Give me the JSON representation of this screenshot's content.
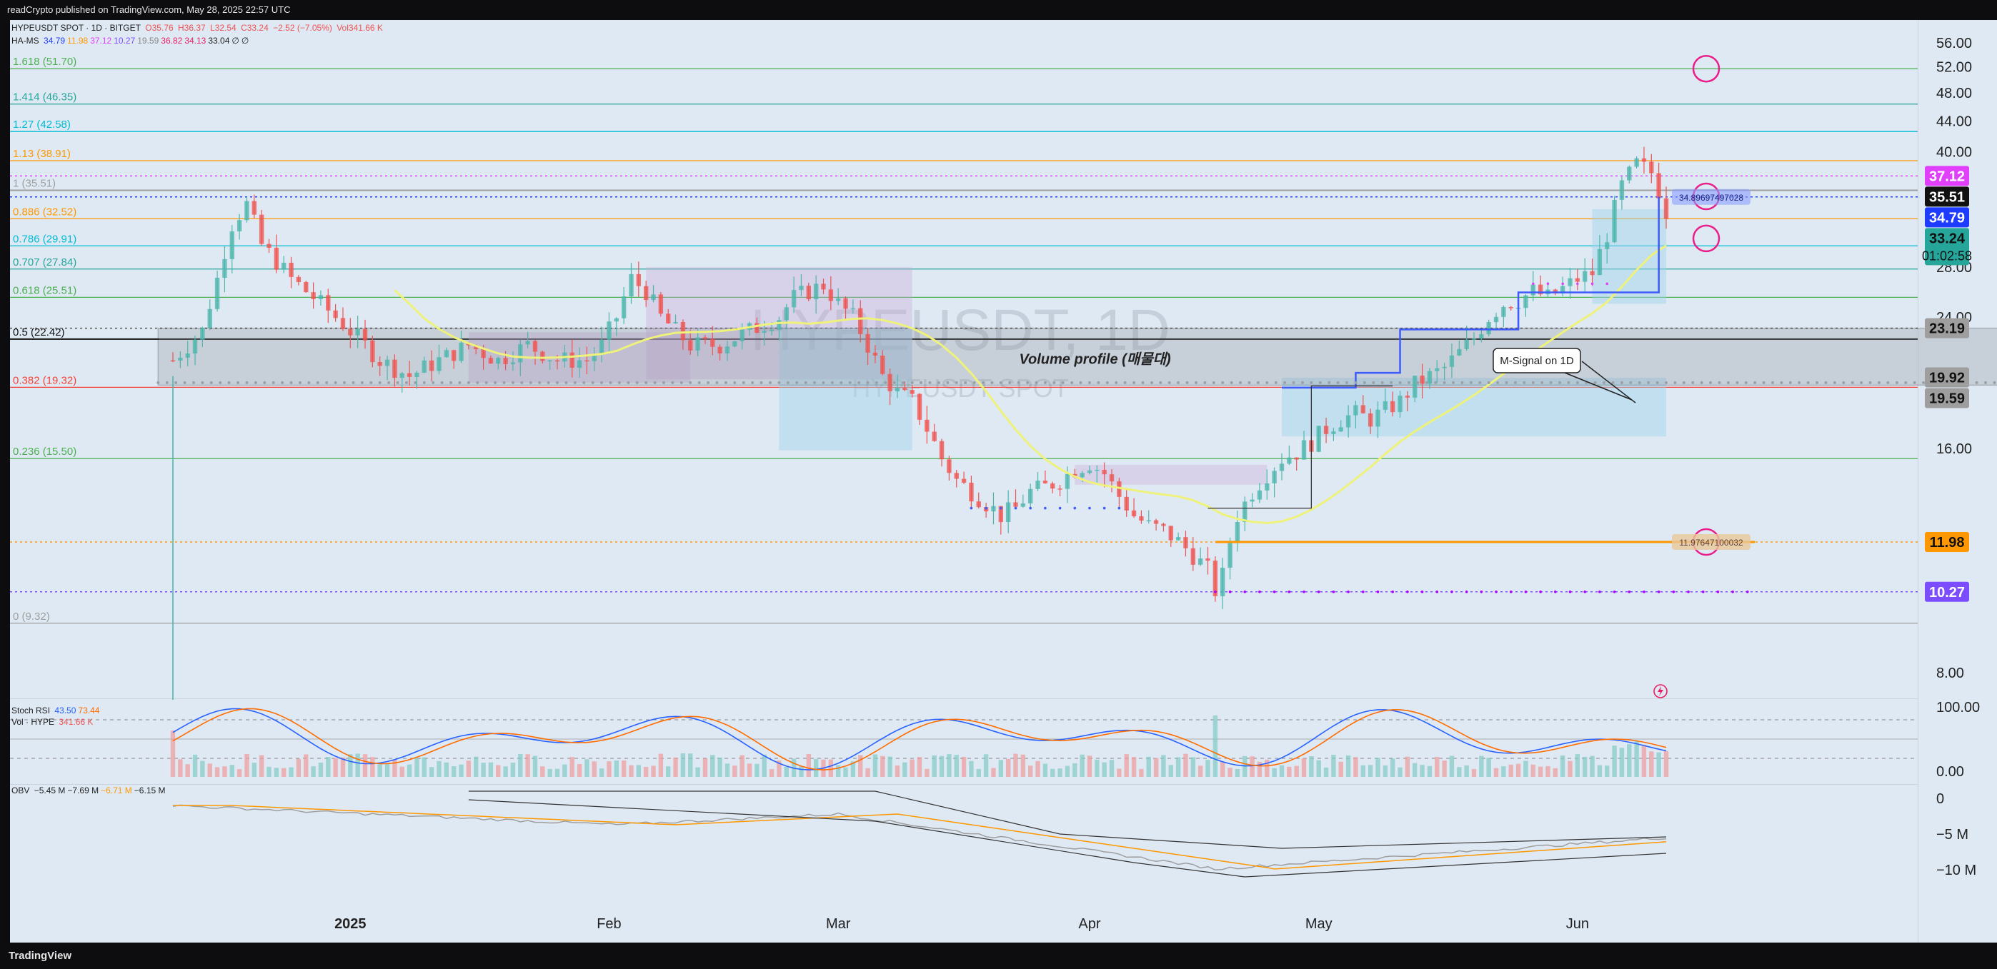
{
  "header": {
    "published": "readCrypto published on TradingView.com, May 28, 2025 22:57 UTC"
  },
  "footer": {
    "logo": "TradingView"
  },
  "legend": {
    "symbol": "HYPEUSDT SPOT · 1D · BITGET",
    "ohlc_o": "O35.76",
    "ohlc_h": "H36.37",
    "ohlc_l": "L32.54",
    "ohlc_c": "C33.24",
    "ohlc_chg": "−2.52 (−7.05%)",
    "vol": "Vol341.66 K",
    "ha_ms_name": "HA-MS",
    "ha_ms_values": [
      "34.79",
      "11.98",
      "37.12",
      "10.27",
      "19.59",
      "36.82",
      "34.13",
      "33.04",
      "∅",
      "∅"
    ],
    "ha_ms_colors": [
      "#1e3cff",
      "#ff9800",
      "#e040fb",
      "#7c4dff",
      "#888888",
      "#e91e63",
      "#e91e63",
      "#222222",
      "#222222",
      "#222222"
    ]
  },
  "watermark": {
    "symbol": "HYPEUSDT, 1D",
    "sub": "HYPEUSDT SPOT"
  },
  "annotations": {
    "volume_profile": "Volume profile (매물대)",
    "m_signal": "M-Signal on 1D",
    "tag_upper": "34.89697497028",
    "tag_lower": "11.97647100032"
  },
  "colors": {
    "chart_bg": "#dfe9f4",
    "up_candle": "#4db6ac",
    "down_candle": "#ef5350",
    "fib_green": "#4caf50",
    "fib_teal": "#26a69a",
    "fib_orange": "#ff9800",
    "fib_red": "#f44336",
    "fib_gray": "#9e9e9e",
    "fib_black": "#111111",
    "fib_cyan": "#00bcd4"
  },
  "chart_data": [
    {
      "type": "candlestick",
      "symbol": "HYPEUSDT",
      "interval": "1D",
      "y_axis": {
        "scale": "log",
        "ticks": [
          "56.00",
          "52.00",
          "48.00",
          "44.00",
          "40.00",
          "28.00",
          "24.00",
          "16.00",
          "8.00"
        ],
        "tick_values": [
          56,
          52,
          48,
          44,
          40,
          28,
          24,
          16,
          8
        ]
      },
      "x_axis": {
        "labels": [
          "2025",
          "Feb",
          "Mar",
          "Apr",
          "May",
          "Jun"
        ]
      },
      "fib_levels": [
        {
          "label": "1.618 (51.70)",
          "value": 51.7,
          "color": "#4caf50"
        },
        {
          "label": "1.414 (46.35)",
          "value": 46.35,
          "color": "#26a69a"
        },
        {
          "label": "1.27 (42.58)",
          "value": 42.58,
          "color": "#00bcd4"
        },
        {
          "label": "1.13 (38.91)",
          "value": 38.91,
          "color": "#ff9800"
        },
        {
          "label": "1 (35.51)",
          "value": 35.51,
          "color": "#9e9e9e"
        },
        {
          "label": "0.886 (32.52)",
          "value": 32.52,
          "color": "#ff9800"
        },
        {
          "label": "0.786 (29.91)",
          "value": 29.91,
          "color": "#00bcd4"
        },
        {
          "label": "0.707 (27.84)",
          "value": 27.84,
          "color": "#26a69a"
        },
        {
          "label": "0.618 (25.51)",
          "value": 25.51,
          "color": "#4caf50"
        },
        {
          "label": "0.5 (22.42)",
          "value": 22.42,
          "color": "#111111"
        },
        {
          "label": "0.382 (19.32)",
          "value": 19.32,
          "color": "#f44336"
        },
        {
          "label": "0.236 (15.50)",
          "value": 15.5,
          "color": "#4caf50"
        },
        {
          "label": "0 (9.32)",
          "value": 9.32,
          "color": "#9e9e9e"
        }
      ],
      "price_tags": [
        {
          "text": "37.12",
          "value": 37.12,
          "bg": "#e040fb",
          "fg": "#ffffff"
        },
        {
          "text": "35.51",
          "value": 35.51,
          "bg": "#111111",
          "fg": "#ffffff"
        },
        {
          "text": "34.79",
          "value": 34.79,
          "bg": "#1e3cff",
          "fg": "#ffffff"
        },
        {
          "text": "33.24",
          "value": 33.24,
          "bg": "#26a69a",
          "fg": "#111111"
        },
        {
          "text": "23.19",
          "value": 23.19,
          "bg": "#9e9e9e",
          "fg": "#111111"
        },
        {
          "text": "19.92",
          "value": 19.92,
          "bg": "#9e9e9e",
          "fg": "#111111"
        },
        {
          "text": "19.59",
          "value": 19.59,
          "bg": "#9e9e9e",
          "fg": "#111111"
        },
        {
          "text": "11.98",
          "value": 11.98,
          "bg": "#ff9800",
          "fg": "#111111"
        },
        {
          "text": "10.27",
          "value": 10.27,
          "bg": "#7c4dff",
          "fg": "#ffffff"
        }
      ],
      "countdown": "01:02:58",
      "price_path_anchors": [
        [
          0,
          21
        ],
        [
          4,
          23
        ],
        [
          6,
          27
        ],
        [
          8,
          32
        ],
        [
          10,
          34
        ],
        [
          12,
          30
        ],
        [
          16,
          27
        ],
        [
          20,
          25
        ],
        [
          24,
          23
        ],
        [
          28,
          21
        ],
        [
          32,
          20
        ],
        [
          36,
          21
        ],
        [
          40,
          22
        ],
        [
          44,
          21
        ],
        [
          48,
          22
        ],
        [
          52,
          21
        ],
        [
          56,
          21
        ],
        [
          58,
          22
        ],
        [
          60,
          24
        ],
        [
          62,
          27
        ],
        [
          64,
          26
        ],
        [
          66,
          24
        ],
        [
          70,
          22
        ],
        [
          74,
          22
        ],
        [
          78,
          23
        ],
        [
          82,
          24
        ],
        [
          84,
          25.5
        ],
        [
          86,
          26
        ],
        [
          88,
          26.5
        ],
        [
          90,
          25
        ],
        [
          92,
          24
        ],
        [
          94,
          22
        ],
        [
          96,
          20
        ],
        [
          98,
          19
        ],
        [
          100,
          18.5
        ],
        [
          102,
          17
        ],
        [
          104,
          15.5
        ],
        [
          106,
          14.5
        ],
        [
          108,
          14
        ],
        [
          110,
          13.5
        ],
        [
          112,
          13
        ],
        [
          114,
          13.3
        ],
        [
          116,
          14
        ],
        [
          118,
          14.2
        ],
        [
          120,
          14.5
        ],
        [
          122,
          15
        ],
        [
          124,
          15.3
        ],
        [
          126,
          14.8
        ],
        [
          128,
          13.8
        ],
        [
          130,
          13
        ],
        [
          132,
          12.6
        ],
        [
          134,
          12.4
        ],
        [
          136,
          12
        ],
        [
          138,
          11.5
        ],
        [
          140,
          11
        ],
        [
          141,
          10.3
        ],
        [
          142,
          10.8
        ],
        [
          143,
          12
        ],
        [
          144,
          13
        ],
        [
          146,
          14
        ],
        [
          148,
          14.8
        ],
        [
          150,
          15.5
        ],
        [
          152,
          15.8
        ],
        [
          154,
          16.3
        ],
        [
          156,
          17
        ],
        [
          158,
          17.5
        ],
        [
          160,
          17.8
        ],
        [
          162,
          17.5
        ],
        [
          164,
          18
        ],
        [
          166,
          18.5
        ],
        [
          168,
          19.5
        ],
        [
          170,
          20
        ],
        [
          172,
          20.5
        ],
        [
          174,
          21.5
        ],
        [
          176,
          22.5
        ],
        [
          178,
          24
        ],
        [
          180,
          25
        ],
        [
          182,
          25.3
        ],
        [
          184,
          26
        ],
        [
          186,
          25.5
        ],
        [
          188,
          26.2
        ],
        [
          190,
          27
        ],
        [
          192,
          27.5
        ],
        [
          194,
          31
        ],
        [
          196,
          36
        ],
        [
          198,
          38.5
        ],
        [
          200,
          37.5
        ],
        [
          201,
          35.5
        ],
        [
          202,
          33.24
        ]
      ],
      "candle_count": 203,
      "x_label_days": [
        24,
        59,
        90,
        124,
        155,
        190
      ]
    },
    {
      "type": "line",
      "name": "Stoch RSI",
      "legend_values": [
        "43.50",
        "73.44"
      ],
      "value_colors": [
        "#2962ff",
        "#ff6d00"
      ],
      "y_axis_ticks": [
        "100.00",
        "0.00"
      ],
      "vol_label": "Vol · HYPE",
      "vol_value": "341.66 K"
    },
    {
      "type": "line",
      "name": "OBV",
      "legend_values": [
        "−5.45 M",
        "−7.69 M",
        "−6.71 M",
        "−6.15 M"
      ],
      "value_colors": [
        "#222222",
        "#222222",
        "#ff9800",
        "#222222"
      ],
      "y_axis_ticks": [
        "0",
        "−5 M",
        "−10 M"
      ]
    }
  ]
}
